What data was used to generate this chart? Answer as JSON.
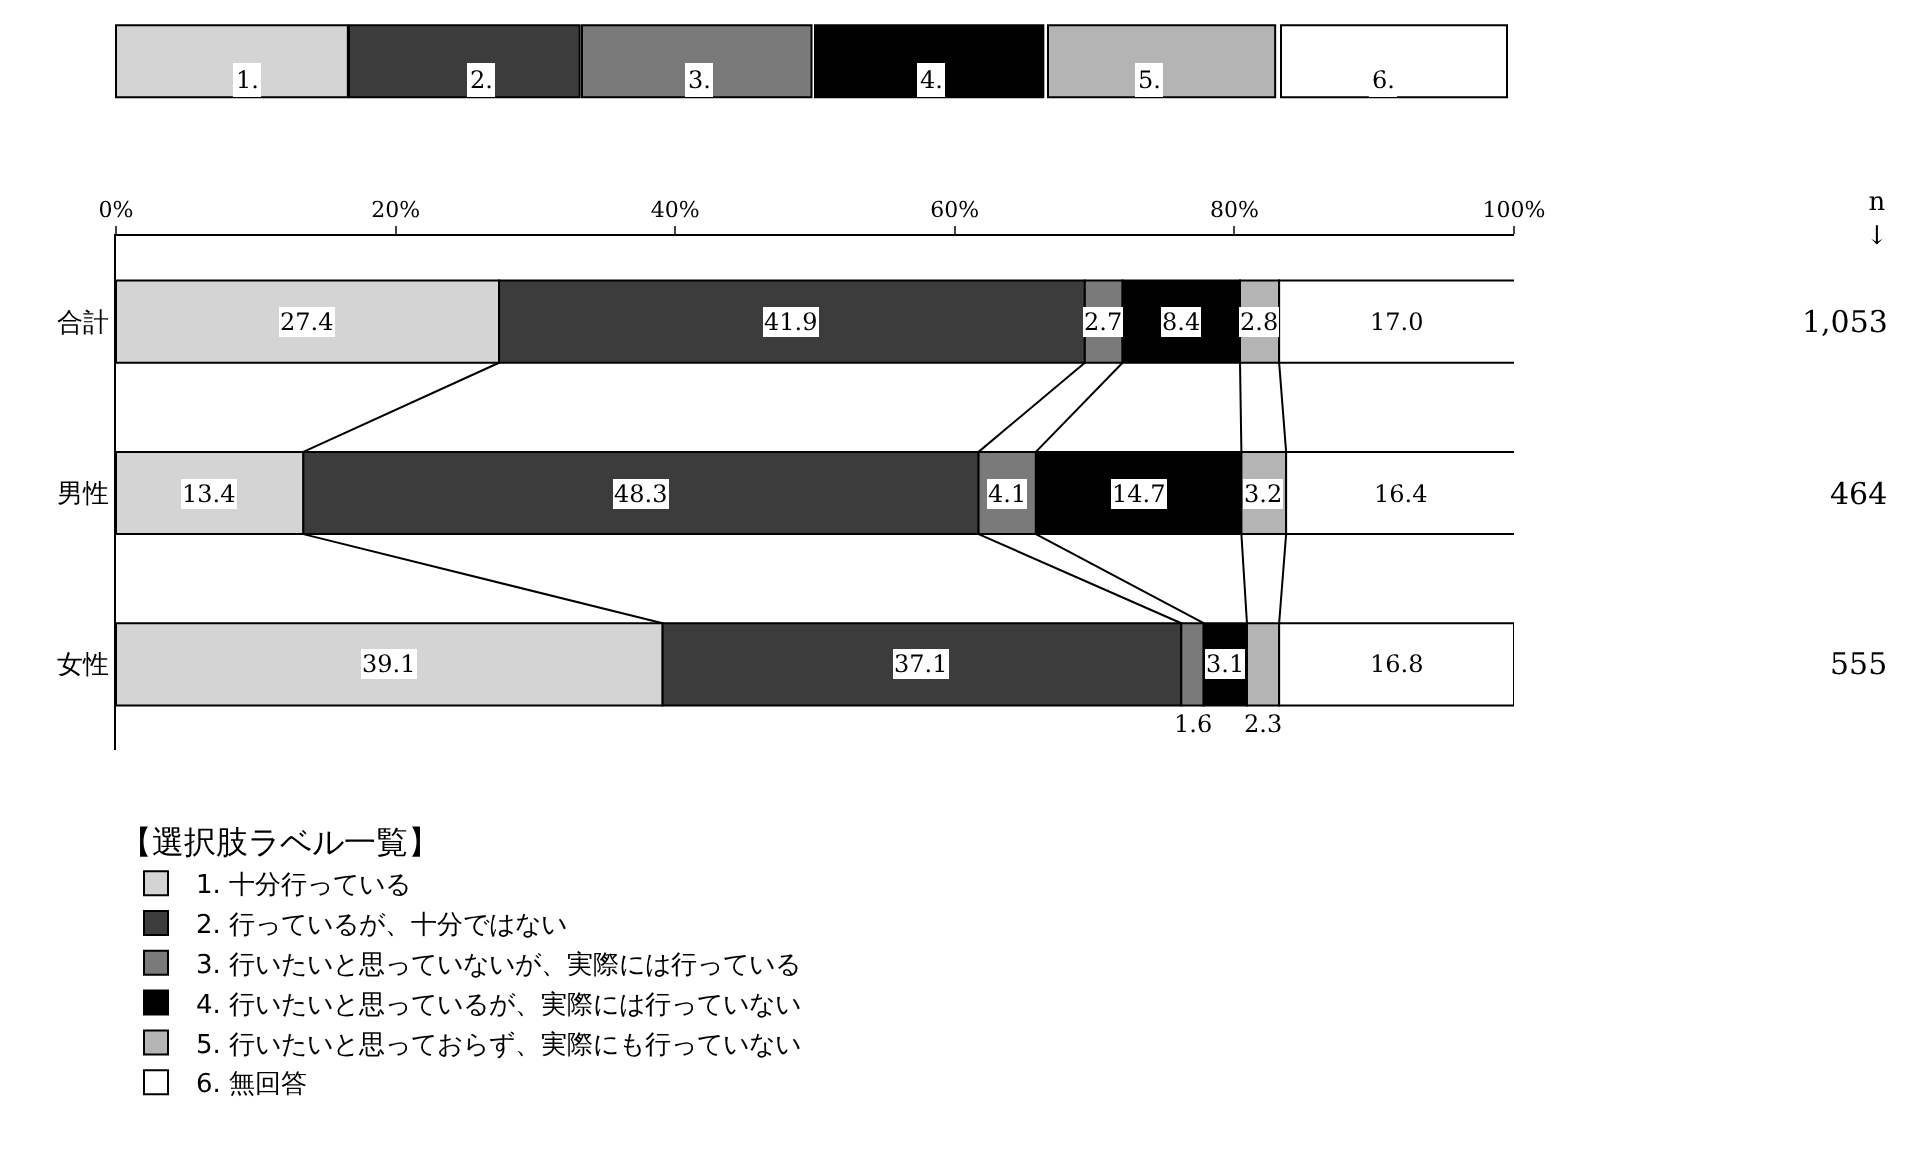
{
  "chart_data": {
    "type": "bar",
    "orientation": "horizontal",
    "stacked": true,
    "categories": [
      "合計",
      "男性",
      "女性"
    ],
    "series": [
      {
        "name": "1. 十分行っている",
        "color": "#d4d4d4",
        "values": [
          27.4,
          13.4,
          39.1
        ]
      },
      {
        "name": "2. 行っているが、十分ではない",
        "color": "#3c3c3c",
        "values": [
          41.9,
          48.3,
          37.1
        ]
      },
      {
        "name": "3. 行いたいと思っていないが、実際には行っている",
        "color": "#7a7a7a",
        "values": [
          2.7,
          4.1,
          1.6
        ]
      },
      {
        "name": "4. 行いたいと思っているが、実際には行っていない",
        "color": "#000000",
        "values": [
          8.4,
          14.7,
          3.1
        ]
      },
      {
        "name": "5. 行いたいと思っておらず、実際にも行っていない",
        "color": "#b4b4b4",
        "values": [
          2.8,
          3.2,
          2.3
        ]
      },
      {
        "name": "6. 無回答",
        "color": "#ffffff",
        "values": [
          17.0,
          16.4,
          16.8
        ],
        "value_labels": [
          "17.0",
          "16.4",
          "16.8"
        ]
      }
    ],
    "xlim": [
      0,
      100
    ],
    "xticks": [
      {
        "value": 0,
        "label": "0%"
      },
      {
        "value": 20,
        "label": "20%"
      },
      {
        "value": 40,
        "label": "40%"
      },
      {
        "value": 60,
        "label": "60%"
      },
      {
        "value": 80,
        "label": "80%"
      },
      {
        "value": 100,
        "label": "100%"
      }
    ],
    "data_labels": true,
    "grid": false,
    "legend": "bottom",
    "legend_title": "【選択肢ラベル一覧】",
    "annotations": [
      "1.",
      "2.",
      "3.",
      "4.",
      "5.",
      "6.",
      "n\n↓",
      "1,053",
      "464",
      "555"
    ]
  }
}
